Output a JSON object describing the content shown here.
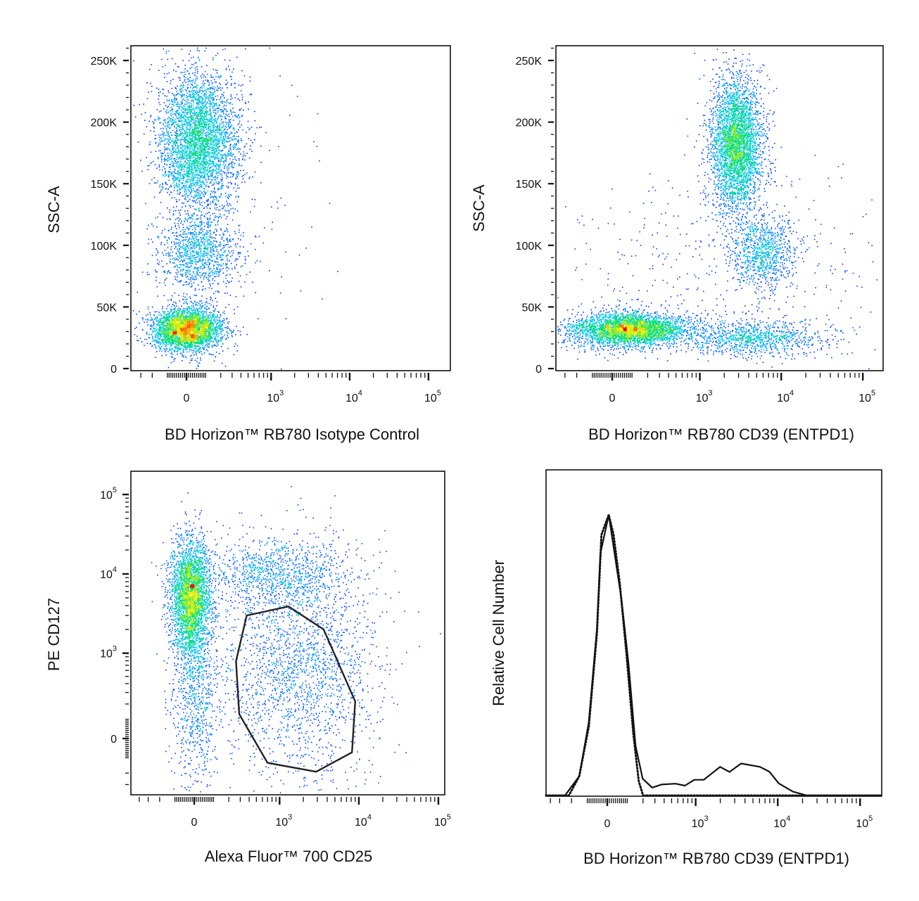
{
  "chart_data": [
    {
      "type": "scatter",
      "panel": "top-left",
      "xlabel": "BD Horizon™ RB780 Isotype Control",
      "ylabel": "SSC-A",
      "x_scale": "biexponential",
      "y_scale": "linear",
      "xlim": [
        -400,
        190000
      ],
      "ylim": [
        -1500,
        262000
      ],
      "color_by": "density",
      "x_ticks": [
        {
          "value": 0,
          "label": "0"
        },
        {
          "value": 1000,
          "base": "10",
          "exp": "3"
        },
        {
          "value": 10000,
          "base": "10",
          "exp": "4"
        },
        {
          "value": 100000,
          "base": "10",
          "exp": "5"
        }
      ],
      "y_ticks": [
        {
          "value": 0,
          "label": "0"
        },
        {
          "value": 50000,
          "label": "50K"
        },
        {
          "value": 100000,
          "label": "100K"
        },
        {
          "value": 150000,
          "label": "150K"
        },
        {
          "value": 200000,
          "label": "200K"
        },
        {
          "value": 250000,
          "label": "250K"
        }
      ],
      "populations": [
        {
          "x": 0,
          "x_sd": 90,
          "y": 32000,
          "y_sd": 9000,
          "events": 3200
        },
        {
          "x": 60,
          "x_sd": 110,
          "y": 185000,
          "y_sd": 28000,
          "events": 3800
        },
        {
          "x": 60,
          "x_sd": 110,
          "y": 95000,
          "y_sd": 17000,
          "events": 1100
        },
        {
          "x": 500,
          "x_sd": 450,
          "y": 110000,
          "y_sd": 60000,
          "events": 90
        }
      ]
    },
    {
      "type": "scatter",
      "panel": "top-right",
      "xlabel": "BD Horizon™ RB780 CD39 (ENTPD1)",
      "ylabel": "SSC-A",
      "x_scale": "biexponential",
      "y_scale": "linear",
      "xlim": [
        -400,
        190000
      ],
      "ylim": [
        -1500,
        262000
      ],
      "color_by": "density",
      "x_ticks": [
        {
          "value": 0,
          "label": "0"
        },
        {
          "value": 1000,
          "base": "10",
          "exp": "3"
        },
        {
          "value": 10000,
          "base": "10",
          "exp": "4"
        },
        {
          "value": 100000,
          "base": "10",
          "exp": "5"
        }
      ],
      "y_ticks": [
        {
          "value": 0,
          "label": "0"
        },
        {
          "value": 50000,
          "label": "50K"
        },
        {
          "value": 100000,
          "label": "100K"
        },
        {
          "value": 150000,
          "label": "150K"
        },
        {
          "value": 200000,
          "label": "200K"
        },
        {
          "value": 250000,
          "label": "250K"
        }
      ],
      "populations": [
        {
          "x": 80,
          "x_sd": 170,
          "y": 32000,
          "y_sd": 7000,
          "events": 3300
        },
        {
          "x": 2800,
          "x_sd": 1000,
          "y": 182000,
          "y_sd": 27000,
          "events": 3500
        },
        {
          "x": 6000,
          "x_sd": 2500,
          "y": 95000,
          "y_sd": 15000,
          "events": 900
        },
        {
          "x": 4500,
          "x_sd": 3500,
          "y": 25000,
          "y_sd": 7000,
          "events": 1000
        },
        {
          "x": 1500,
          "x_sd": 2000,
          "y": 80000,
          "y_sd": 40000,
          "events": 450
        }
      ]
    },
    {
      "type": "scatter",
      "panel": "bottom-left",
      "xlabel": "Alexa Fluor™ 700 CD25",
      "ylabel": "PE CD127",
      "x_scale": "biexponential",
      "y_scale": "biexponential",
      "xlim": [
        -400,
        170000
      ],
      "ylim": [
        -500,
        250000
      ],
      "color_by": "density",
      "x_ticks": [
        {
          "value": 0,
          "label": "0"
        },
        {
          "value": 1000,
          "base": "10",
          "exp": "3"
        },
        {
          "value": 10000,
          "base": "10",
          "exp": "4"
        },
        {
          "value": 100000,
          "base": "10",
          "exp": "5"
        }
      ],
      "y_ticks": [
        {
          "value": 0,
          "label": "0"
        },
        {
          "value": 1000,
          "base": "10",
          "exp": "3"
        },
        {
          "value": 10000,
          "base": "10",
          "exp": "4"
        },
        {
          "value": 100000,
          "base": "10",
          "exp": "5"
        }
      ],
      "populations": [
        {
          "x": -20,
          "x_sd": 50,
          "y": 5000,
          "y_sd": 3500,
          "events": 3000
        },
        {
          "x": 0,
          "x_sd": 60,
          "y": 300,
          "y_sd": 400,
          "events": 800
        },
        {
          "x": 800,
          "x_sd": 700,
          "y": 10000,
          "y_sd": 5000,
          "events": 1000
        },
        {
          "x": 1800,
          "x_sd": 1500,
          "y": 600,
          "y_sd": 700,
          "events": 2000
        }
      ],
      "gate": [
        [
          370,
          3000
        ],
        [
          1300,
          3900
        ],
        [
          3600,
          2000
        ],
        [
          9000,
          220
        ],
        [
          8200,
          -70
        ],
        [
          2900,
          -190
        ],
        [
          700,
          -130
        ],
        [
          290,
          130
        ],
        [
          260,
          790
        ]
      ]
    },
    {
      "type": "line",
      "panel": "bottom-right",
      "xlabel": "BD Horizon™ RB780 CD39 (ENTPD1)",
      "ylabel": "Relative Cell Number",
      "x_scale": "biexponential",
      "xlim": [
        -400,
        190000
      ],
      "ylim": [
        0,
        100
      ],
      "x_ticks": [
        {
          "value": 0,
          "label": "0"
        },
        {
          "value": 1000,
          "base": "10",
          "exp": "3"
        },
        {
          "value": 10000,
          "base": "10",
          "exp": "4"
        },
        {
          "value": 100000,
          "base": "10",
          "exp": "5"
        }
      ],
      "series": [
        {
          "style": "solid",
          "points": [
            [
              -248,
              0.2
            ],
            [
              -147,
              6.9
            ],
            [
              -92,
              26.1
            ],
            [
              -50,
              59.5
            ],
            [
              -33,
              86.2
            ],
            [
              7,
              100
            ],
            [
              35,
              86.2
            ],
            [
              70,
              69.5
            ],
            [
              107,
              47
            ],
            [
              149,
              17.7
            ],
            [
              197,
              6
            ],
            [
              274,
              2.8
            ],
            [
              369,
              3.9
            ],
            [
              561,
              4.2
            ],
            [
              736,
              3.5
            ],
            [
              962,
              5.6
            ],
            [
              1255,
              5.6
            ],
            [
              1990,
              10.2
            ],
            [
              2590,
              8.4
            ],
            [
              3590,
              11.4
            ],
            [
              6080,
              10.2
            ],
            [
              7900,
              8.5
            ],
            [
              10280,
              4.3
            ],
            [
              15250,
              1.4
            ],
            [
              22600,
              0
            ]
          ]
        },
        {
          "style": "dotted",
          "points": [
            [
              -220,
              0
            ],
            [
              -147,
              6.9
            ],
            [
              -92,
              24.4
            ],
            [
              -50,
              57.8
            ],
            [
              -28,
              92.9
            ],
            [
              7,
              100
            ],
            [
              30,
              93
            ],
            [
              60,
              76
            ],
            [
              95,
              51
            ],
            [
              135,
              22
            ],
            [
              170,
              5
            ],
            [
              200,
              0
            ]
          ]
        }
      ]
    }
  ],
  "colors": {
    "density_colormap": [
      "#0000ff",
      "#00c8ff",
      "#00e060",
      "#f0f000",
      "#ff0000"
    ],
    "axis": "#111111",
    "histogram": "#111111"
  }
}
